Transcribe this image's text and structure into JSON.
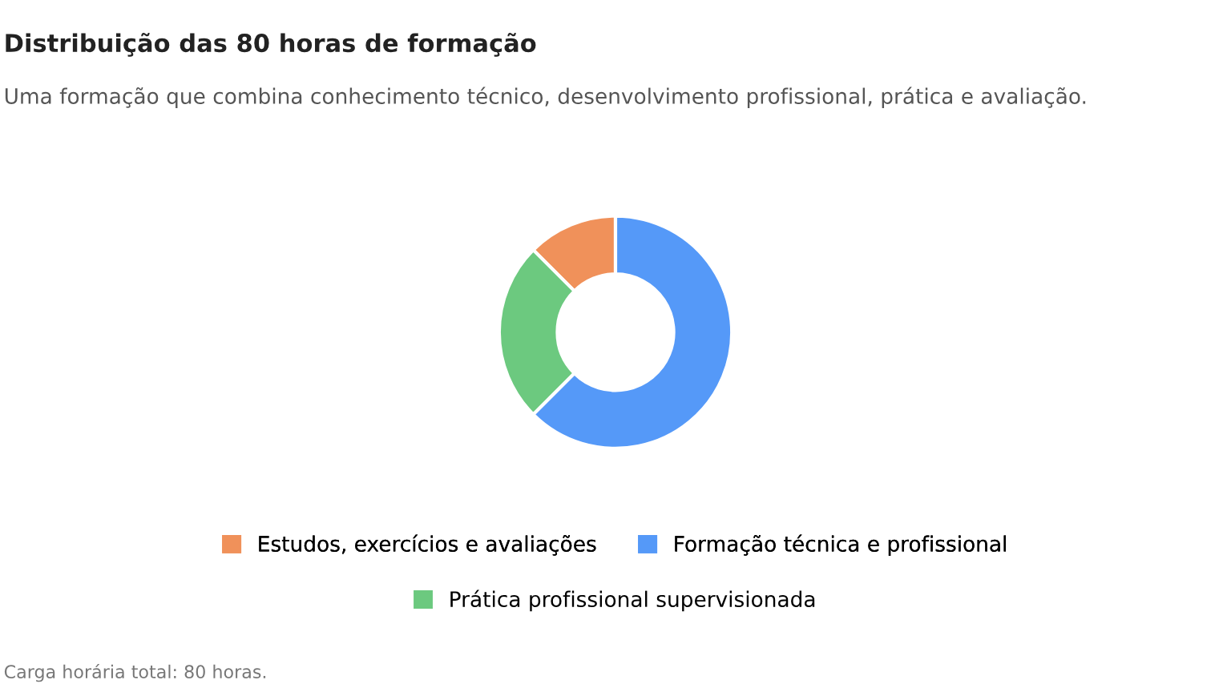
{
  "chart_data": {
    "type": "donut",
    "title": "Distribuição das 80 horas de formação",
    "subtitle": "Uma formação que combina conhecimento técnico, desenvolvimento profissional, prática e avaliação.",
    "categories": [
      "Estudos, exercícios e avaliações",
      "Formação técnica e profissional",
      "Prática profissional supervisionada"
    ],
    "values": [
      12.5,
      62.5,
      25
    ],
    "colors": [
      "#f0915a",
      "#5599f8",
      "#6cc97f"
    ],
    "legend": "bottom",
    "annotations": [
      "Carga horária total: 80 horas."
    ]
  }
}
